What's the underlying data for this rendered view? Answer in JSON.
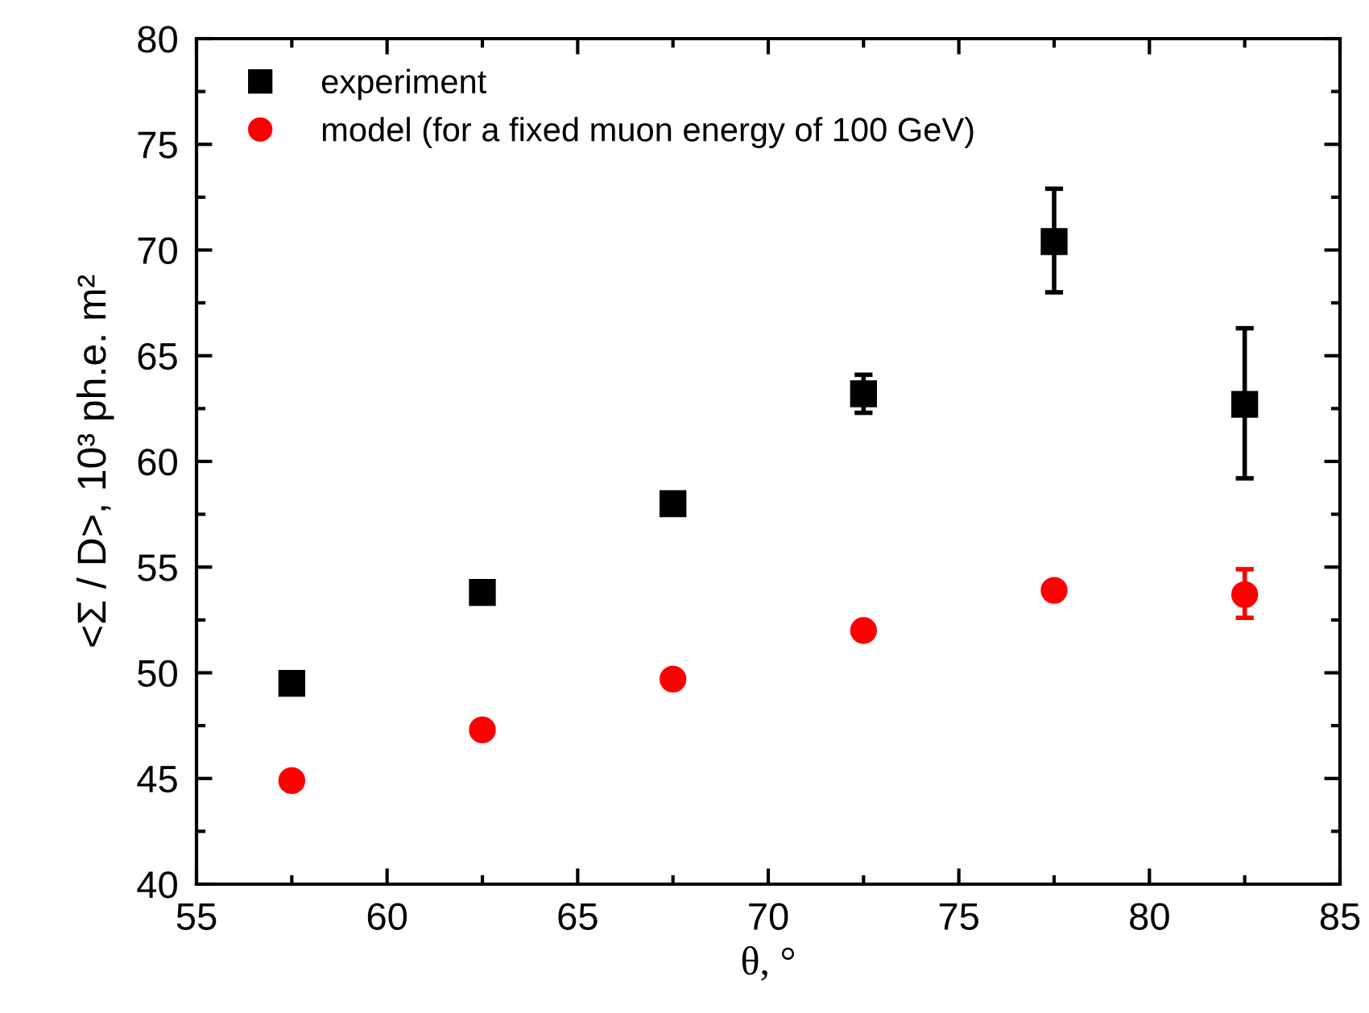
{
  "chart_data": {
    "type": "scatter",
    "xlabel": "θ, °",
    "ylabel": "<Σ / D>, 10³ ph.e. m²",
    "xlim": [
      55,
      85
    ],
    "xticks": [
      55,
      60,
      65,
      70,
      75,
      80,
      85
    ],
    "ylim": [
      40,
      80
    ],
    "yticks": [
      40,
      45,
      50,
      55,
      60,
      65,
      70,
      75,
      80
    ],
    "grid": false,
    "legend": "top left",
    "series": [
      {
        "name": "experiment",
        "color": "#000000",
        "marker": "square",
        "x": [
          57.5,
          62.5,
          67.5,
          72.5,
          77.5,
          82.5
        ],
        "values": [
          49.5,
          53.8,
          58.0,
          63.2,
          70.4,
          62.7
        ],
        "errors": [
          0.5,
          null,
          0.4,
          [
            62.3,
            64.1
          ],
          [
            68.0,
            72.9
          ],
          [
            59.2,
            66.3
          ]
        ]
      },
      {
        "name": "model (for a fixed muon energy of 100 GeV)",
        "color": "#ff0000",
        "marker": "circle",
        "x": [
          57.5,
          62.5,
          67.5,
          72.5,
          77.5,
          82.5
        ],
        "values": [
          44.9,
          47.3,
          49.7,
          52.0,
          53.9,
          53.7
        ],
        "errors": [
          null,
          null,
          null,
          null,
          null,
          [
            52.6,
            54.9
          ]
        ]
      }
    ]
  }
}
